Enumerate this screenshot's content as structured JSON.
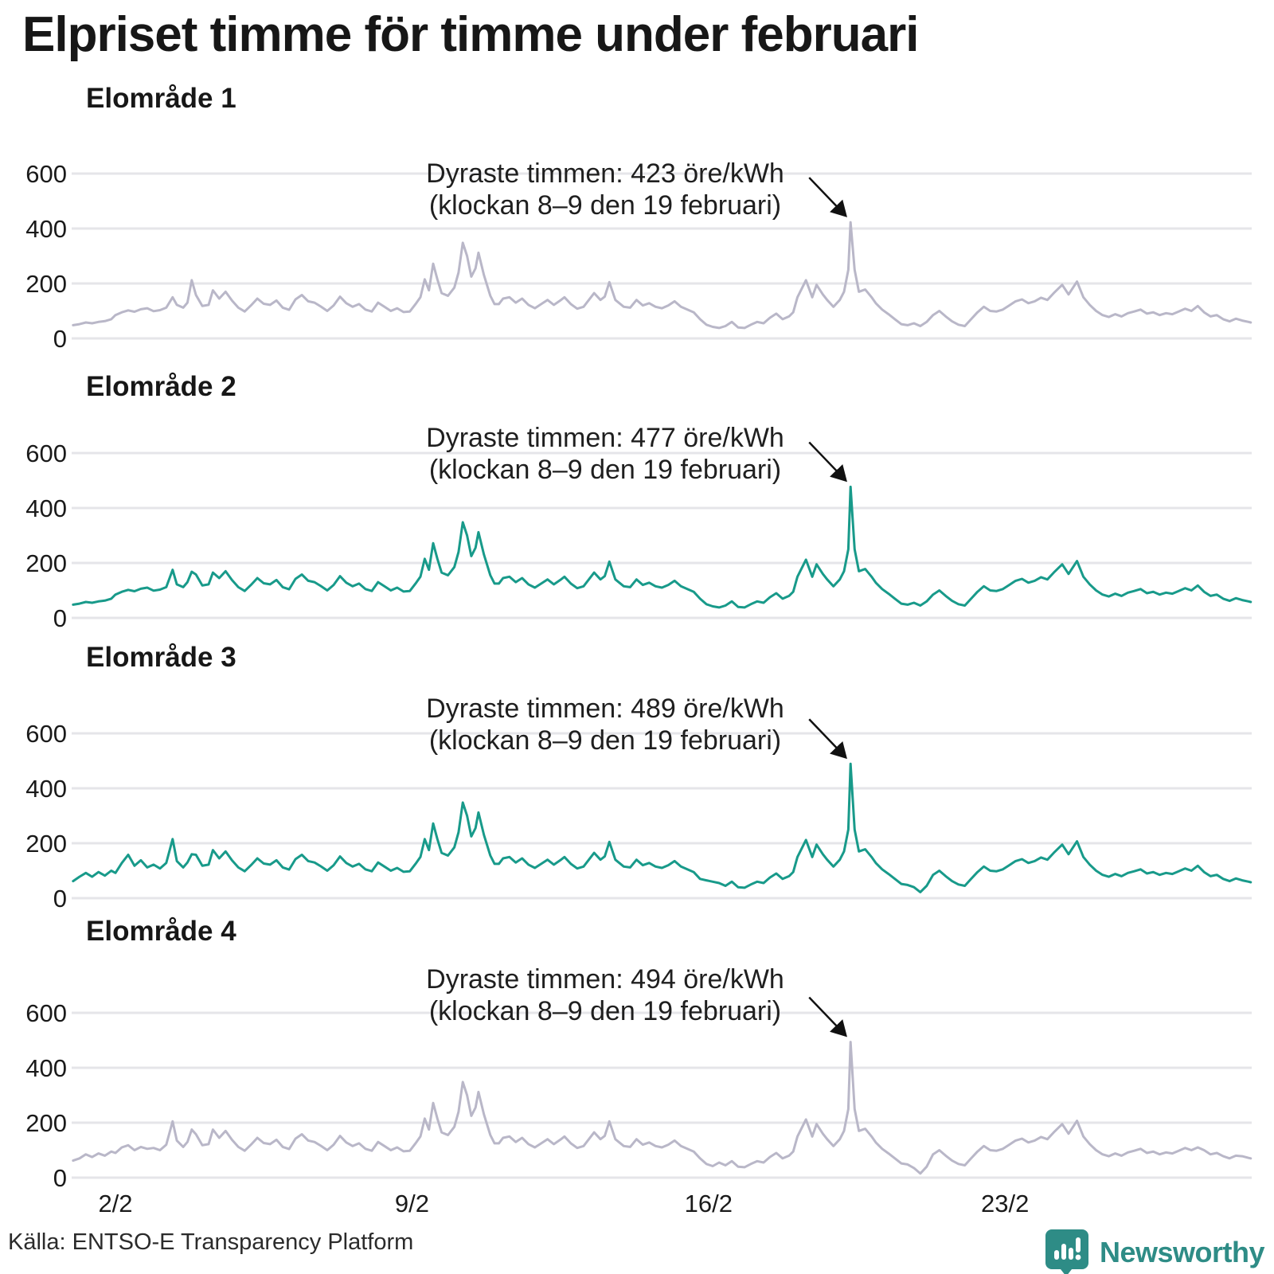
{
  "title": "Elpriset timme för timme under februari",
  "footer": {
    "source": "Källa: ENTSO-E Transparency Platform",
    "brand": "Newsworthy"
  },
  "colors": {
    "teal_series": "#189a8a",
    "gray_series": "#b9b7c8",
    "grid": "#e5e5e9",
    "text": "#1a1a1a",
    "arrow": "#111111",
    "brand_teal": "#2e8c86"
  },
  "chart_data": {
    "type": "line",
    "x_unit": "day of February",
    "y_unit": "öre/kWh",
    "ylim": [
      0,
      650
    ],
    "yticks": [
      0,
      200,
      400,
      600
    ],
    "xticks": [
      {
        "day": 2,
        "label": "2/2"
      },
      {
        "day": 9,
        "label": "9/2"
      },
      {
        "day": 16,
        "label": "16/2"
      },
      {
        "day": 23,
        "label": "23/2"
      }
    ],
    "grid": "horizontal only",
    "legend": "none",
    "base_points": [
      [
        1,
        48
      ],
      [
        1.15,
        52
      ],
      [
        1.3,
        58
      ],
      [
        1.45,
        55
      ],
      [
        1.6,
        60
      ],
      [
        1.75,
        63
      ],
      [
        1.9,
        70
      ],
      [
        2,
        85
      ],
      [
        2.15,
        95
      ],
      [
        2.3,
        102
      ],
      [
        2.45,
        97
      ],
      [
        2.6,
        106
      ],
      [
        2.75,
        110
      ],
      [
        2.9,
        99
      ],
      [
        3.05,
        103
      ],
      [
        3.2,
        112
      ],
      [
        3.35,
        150
      ],
      [
        3.45,
        122
      ],
      [
        3.6,
        112
      ],
      [
        3.7,
        130
      ],
      [
        3.8,
        212
      ],
      [
        3.9,
        158
      ],
      [
        4.05,
        118
      ],
      [
        4.2,
        122
      ],
      [
        4.3,
        175
      ],
      [
        4.45,
        145
      ],
      [
        4.6,
        170
      ],
      [
        4.75,
        138
      ],
      [
        4.9,
        112
      ],
      [
        5.05,
        98
      ],
      [
        5.2,
        120
      ],
      [
        5.35,
        145
      ],
      [
        5.5,
        126
      ],
      [
        5.65,
        122
      ],
      [
        5.8,
        138
      ],
      [
        5.95,
        112
      ],
      [
        6.1,
        104
      ],
      [
        6.25,
        142
      ],
      [
        6.4,
        158
      ],
      [
        6.55,
        135
      ],
      [
        6.7,
        130
      ],
      [
        6.85,
        116
      ],
      [
        7,
        100
      ],
      [
        7.15,
        120
      ],
      [
        7.3,
        152
      ],
      [
        7.45,
        128
      ],
      [
        7.6,
        115
      ],
      [
        7.75,
        125
      ],
      [
        7.9,
        105
      ],
      [
        8.05,
        98
      ],
      [
        8.2,
        130
      ],
      [
        8.35,
        115
      ],
      [
        8.5,
        100
      ],
      [
        8.65,
        110
      ],
      [
        8.8,
        96
      ],
      [
        8.95,
        98
      ],
      [
        9.1,
        128
      ],
      [
        9.2,
        150
      ],
      [
        9.3,
        215
      ],
      [
        9.4,
        175
      ],
      [
        9.5,
        272
      ],
      [
        9.6,
        215
      ],
      [
        9.7,
        165
      ],
      [
        9.85,
        155
      ],
      [
        10,
        185
      ],
      [
        10.1,
        240
      ],
      [
        10.2,
        348
      ],
      [
        10.3,
        300
      ],
      [
        10.4,
        225
      ],
      [
        10.5,
        255
      ],
      [
        10.57,
        312
      ],
      [
        10.7,
        230
      ],
      [
        10.85,
        155
      ],
      [
        10.95,
        125
      ],
      [
        11.05,
        125
      ],
      [
        11.15,
        145
      ],
      [
        11.3,
        150
      ],
      [
        11.45,
        130
      ],
      [
        11.6,
        145
      ],
      [
        11.75,
        122
      ],
      [
        11.9,
        110
      ],
      [
        12.05,
        125
      ],
      [
        12.2,
        140
      ],
      [
        12.35,
        122
      ],
      [
        12.5,
        138
      ],
      [
        12.6,
        150
      ],
      [
        12.75,
        125
      ],
      [
        12.9,
        108
      ],
      [
        13.05,
        115
      ],
      [
        13.3,
        165
      ],
      [
        13.45,
        140
      ],
      [
        13.55,
        152
      ],
      [
        13.66,
        205
      ],
      [
        13.8,
        140
      ],
      [
        14,
        115
      ],
      [
        14.15,
        112
      ],
      [
        14.3,
        140
      ],
      [
        14.45,
        120
      ],
      [
        14.6,
        128
      ],
      [
        14.75,
        115
      ],
      [
        14.9,
        110
      ],
      [
        15.05,
        120
      ],
      [
        15.2,
        135
      ],
      [
        15.35,
        115
      ],
      [
        15.5,
        105
      ],
      [
        15.65,
        95
      ],
      [
        15.8,
        70
      ],
      [
        15.95,
        50
      ],
      [
        16.1,
        42
      ],
      [
        16.25,
        38
      ],
      [
        16.4,
        45
      ],
      [
        16.55,
        60
      ],
      [
        16.7,
        40
      ],
      [
        16.85,
        38
      ],
      [
        17,
        50
      ],
      [
        17.15,
        60
      ],
      [
        17.3,
        55
      ],
      [
        17.45,
        75
      ],
      [
        17.6,
        90
      ],
      [
        17.75,
        70
      ],
      [
        17.9,
        80
      ],
      [
        18,
        95
      ],
      [
        18.1,
        150
      ],
      [
        18.3,
        212
      ],
      [
        18.45,
        150
      ],
      [
        18.55,
        195
      ],
      [
        18.7,
        160
      ],
      [
        18.8,
        140
      ],
      [
        18.95,
        115
      ],
      [
        19.1,
        140
      ],
      [
        19.2,
        170
      ],
      [
        19.3,
        250
      ],
      [
        19.354,
        423
      ],
      [
        19.45,
        250
      ],
      [
        19.55,
        170
      ],
      [
        19.7,
        178
      ],
      [
        19.85,
        150
      ],
      [
        19.95,
        128
      ],
      [
        20.1,
        105
      ],
      [
        20.25,
        88
      ],
      [
        20.4,
        70
      ],
      [
        20.55,
        52
      ],
      [
        20.7,
        48
      ],
      [
        20.85,
        55
      ],
      [
        21,
        45
      ],
      [
        21.15,
        60
      ],
      [
        21.3,
        85
      ],
      [
        21.45,
        100
      ],
      [
        21.6,
        80
      ],
      [
        21.75,
        62
      ],
      [
        21.9,
        50
      ],
      [
        22.05,
        45
      ],
      [
        22.2,
        70
      ],
      [
        22.35,
        95
      ],
      [
        22.5,
        115
      ],
      [
        22.65,
        100
      ],
      [
        22.8,
        98
      ],
      [
        22.95,
        105
      ],
      [
        23.1,
        120
      ],
      [
        23.25,
        135
      ],
      [
        23.4,
        142
      ],
      [
        23.55,
        128
      ],
      [
        23.7,
        135
      ],
      [
        23.85,
        148
      ],
      [
        24,
        140
      ],
      [
        24.15,
        165
      ],
      [
        24.35,
        195
      ],
      [
        24.5,
        160
      ],
      [
        24.7,
        207
      ],
      [
        24.85,
        150
      ],
      [
        25,
        122
      ],
      [
        25.15,
        100
      ],
      [
        25.3,
        85
      ],
      [
        25.45,
        78
      ],
      [
        25.6,
        88
      ],
      [
        25.75,
        80
      ],
      [
        25.9,
        92
      ],
      [
        26.05,
        98
      ],
      [
        26.2,
        105
      ],
      [
        26.35,
        90
      ],
      [
        26.5,
        95
      ],
      [
        26.65,
        85
      ],
      [
        26.8,
        92
      ],
      [
        26.95,
        88
      ],
      [
        27.1,
        98
      ],
      [
        27.25,
        108
      ],
      [
        27.4,
        100
      ],
      [
        27.55,
        118
      ],
      [
        27.7,
        95
      ],
      [
        27.85,
        80
      ],
      [
        28,
        85
      ],
      [
        28.15,
        70
      ],
      [
        28.3,
        62
      ],
      [
        28.45,
        72
      ],
      [
        28.6,
        65
      ],
      [
        28.75,
        60
      ],
      [
        28.8,
        58
      ]
    ],
    "panels": [
      {
        "label": "Elområde 1",
        "series_color": "#b9b7c8",
        "peak_ore": 423,
        "peak_day": 19.354,
        "annotation": {
          "line1": "Dyraste timmen: 423 öre/kWh",
          "line2": "(klockan 8–9 den 19 februari)"
        },
        "overrides": {}
      },
      {
        "label": "Elområde 2",
        "series_color": "#189a8a",
        "peak_ore": 477,
        "peak_day": 19.354,
        "annotation": {
          "line1": "Dyraste timmen: 477 öre/kWh",
          "line2": "(klockan 8–9 den 19 februari)"
        },
        "overrides": {
          "3.35": 175,
          "3.8": 168,
          "4.3": 165
        }
      },
      {
        "label": "Elområde 3",
        "series_color": "#189a8a",
        "peak_ore": 489,
        "peak_day": 19.354,
        "annotation": {
          "line1": "Dyraste timmen: 489 öre/kWh",
          "line2": "(klockan 8–9 den 19 februari)"
        },
        "overrides": {
          "1": 62,
          "1.15": 78,
          "1.3": 92,
          "1.45": 78,
          "1.6": 95,
          "1.75": 82,
          "1.9": 100,
          "2": 92,
          "2.15": 128,
          "2.3": 158,
          "2.45": 118,
          "2.6": 138,
          "2.75": 112,
          "2.9": 122,
          "3.05": 108,
          "3.2": 128,
          "3.35": 215,
          "3.45": 135,
          "3.8": 160,
          "15.95": 65,
          "16.1": 60,
          "16.25": 55,
          "20.85": 40,
          "21": 22,
          "21.15": 45
        }
      },
      {
        "label": "Elområde 4",
        "series_color": "#b9b7c8",
        "peak_ore": 494,
        "peak_day": 19.354,
        "annotation": {
          "line1": "Dyraste timmen: 494 öre/kWh",
          "line2": "(klockan 8–9 den 19 februari)"
        },
        "overrides": {
          "1": 62,
          "1.15": 70,
          "1.3": 85,
          "1.45": 75,
          "1.6": 88,
          "1.75": 80,
          "1.9": 95,
          "2": 90,
          "2.15": 110,
          "2.3": 118,
          "2.45": 100,
          "2.6": 112,
          "2.75": 105,
          "2.9": 108,
          "3.05": 100,
          "3.2": 120,
          "3.35": 205,
          "3.45": 135,
          "3.8": 175,
          "16.25": 55,
          "20.85": 35,
          "21": 15,
          "21.15": 40,
          "27.55": 110,
          "27.7": 100,
          "27.85": 85,
          "28": 90,
          "28.15": 78,
          "28.3": 70,
          "28.45": 80,
          "28.6": 78,
          "28.75": 72,
          "28.8": 70
        }
      }
    ]
  }
}
